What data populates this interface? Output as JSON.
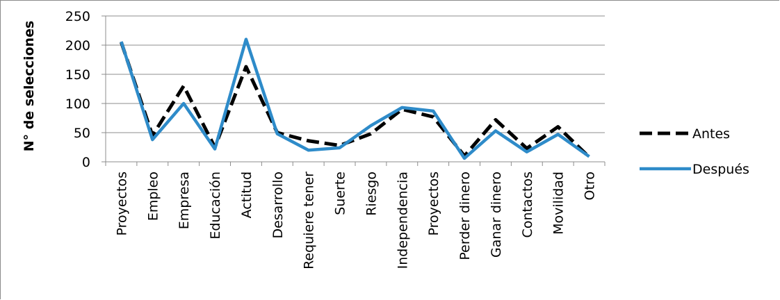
{
  "chart_data": {
    "type": "line",
    "title": "",
    "xlabel": "",
    "ylabel": "N° de selecciones",
    "ylim": [
      0,
      250
    ],
    "yticks": [
      0,
      50,
      100,
      150,
      200,
      250
    ],
    "grid": true,
    "legend_position": "right",
    "categories": [
      "Proyectos",
      "Empleo",
      "Empresa",
      "Educación",
      "Actitud",
      "Desarrollo",
      "Requiere tener",
      "Suerte",
      "Riesgo",
      "Independencia",
      "Proyectos",
      "Perder dinero",
      "Ganar dinero",
      "Contactos",
      "Movilidad",
      "Otro"
    ],
    "series": [
      {
        "name": "Antes",
        "color": "#000000",
        "dash": true,
        "values": [
          205,
          45,
          130,
          25,
          163,
          50,
          36,
          28,
          48,
          90,
          77,
          10,
          72,
          23,
          60,
          8
        ]
      },
      {
        "name": "Después",
        "color": "#2e8bc9",
        "dash": false,
        "values": [
          206,
          38,
          100,
          22,
          210,
          48,
          20,
          24,
          62,
          93,
          87,
          6,
          53,
          17,
          47,
          9
        ]
      }
    ]
  }
}
